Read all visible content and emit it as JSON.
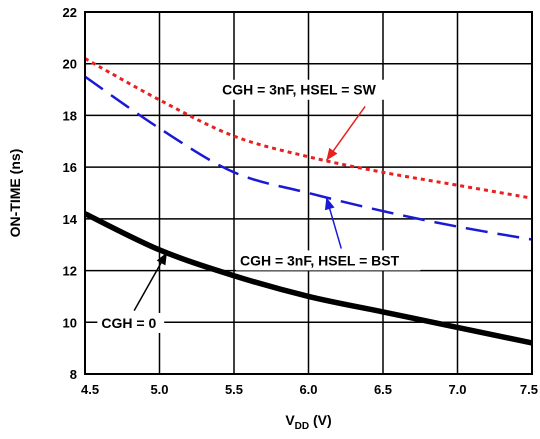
{
  "chart_data": {
    "type": "line",
    "xlabel": {
      "main": "V",
      "sub": "DD",
      "unit": " (V)"
    },
    "ylabel": "ON-TIME (ns)",
    "xlim": [
      4.5,
      7.5
    ],
    "ylim": [
      8,
      22
    ],
    "x_ticks": [
      "4.5",
      "5.0",
      "5.5",
      "6.0",
      "6.5",
      "7.0",
      "7.5"
    ],
    "y_ticks": [
      "8",
      "10",
      "12",
      "14",
      "16",
      "18",
      "20",
      "22"
    ],
    "grid": true,
    "series": [
      {
        "name": "CGH = 3nF, HSEL = SW",
        "color": "#e8201f",
        "style": "dotted",
        "x": [
          4.5,
          5.0,
          5.5,
          6.0,
          6.5,
          7.0,
          7.5
        ],
        "y": [
          20.2,
          18.6,
          17.2,
          16.4,
          15.8,
          15.3,
          14.8
        ]
      },
      {
        "name": "CGH = 3nF, HSEL = BST",
        "color": "#1a1ad6",
        "style": "dashed",
        "x": [
          4.5,
          5.0,
          5.5,
          6.0,
          6.5,
          7.0,
          7.5
        ],
        "y": [
          19.5,
          17.5,
          15.8,
          15.0,
          14.3,
          13.7,
          13.2
        ]
      },
      {
        "name": "CGH = 0",
        "color": "#000000",
        "style": "solid",
        "x": [
          4.5,
          5.0,
          5.5,
          6.0,
          6.5,
          7.0,
          7.5
        ],
        "y": [
          14.2,
          12.8,
          11.8,
          11.0,
          10.4,
          9.8,
          9.2
        ]
      }
    ],
    "annotations": [
      {
        "text": "CGH = 3nF, HSEL = SW",
        "series": 0
      },
      {
        "text": "CGH = 3nF, HSEL = BST",
        "series": 1
      },
      {
        "text": "CGH = 0",
        "series": 2
      }
    ]
  }
}
